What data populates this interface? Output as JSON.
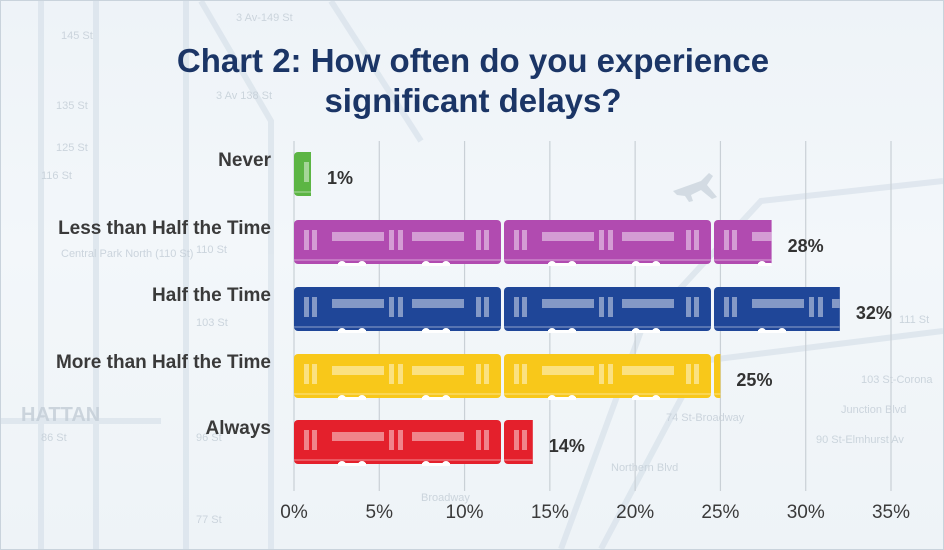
{
  "title_line1": "Chart 2: How often do you experience",
  "title_line2": "significant delays?",
  "chart_data": {
    "type": "bar",
    "orientation": "horizontal",
    "categories": [
      "Never",
      "Less than Half the Time",
      "Half the Time",
      "More than Half the Time",
      "Always"
    ],
    "values": [
      1,
      28,
      32,
      25,
      14
    ],
    "value_labels": [
      "1%",
      "28%",
      "32%",
      "25%",
      "14%"
    ],
    "colors": [
      "#5cb544",
      "#b14bb0",
      "#1f4698",
      "#f8c81a",
      "#e4202c"
    ],
    "xlim": [
      0,
      35
    ],
    "xticks": [
      0,
      5,
      10,
      15,
      20,
      25,
      30,
      35
    ],
    "xtick_labels": [
      "0%",
      "5%",
      "10%",
      "15%",
      "20%",
      "25%",
      "30%",
      "35%"
    ],
    "grid": true,
    "mark_style": "subway-car pictograms"
  },
  "background_map_labels": [
    "3 Av-149 St",
    "145 St",
    "135 St",
    "125 St",
    "116 St",
    "110 St",
    "103 St",
    "96 St",
    "86 St",
    "77 St",
    "3 Av 138 St",
    "Central Park North (110 St)",
    "HATTAN",
    "Broadway",
    "Northern Blvd",
    "74 St-Broadway",
    "Junction Blvd",
    "90 St-Elmhurst Av",
    "103 St-Corona",
    "111 St"
  ]
}
